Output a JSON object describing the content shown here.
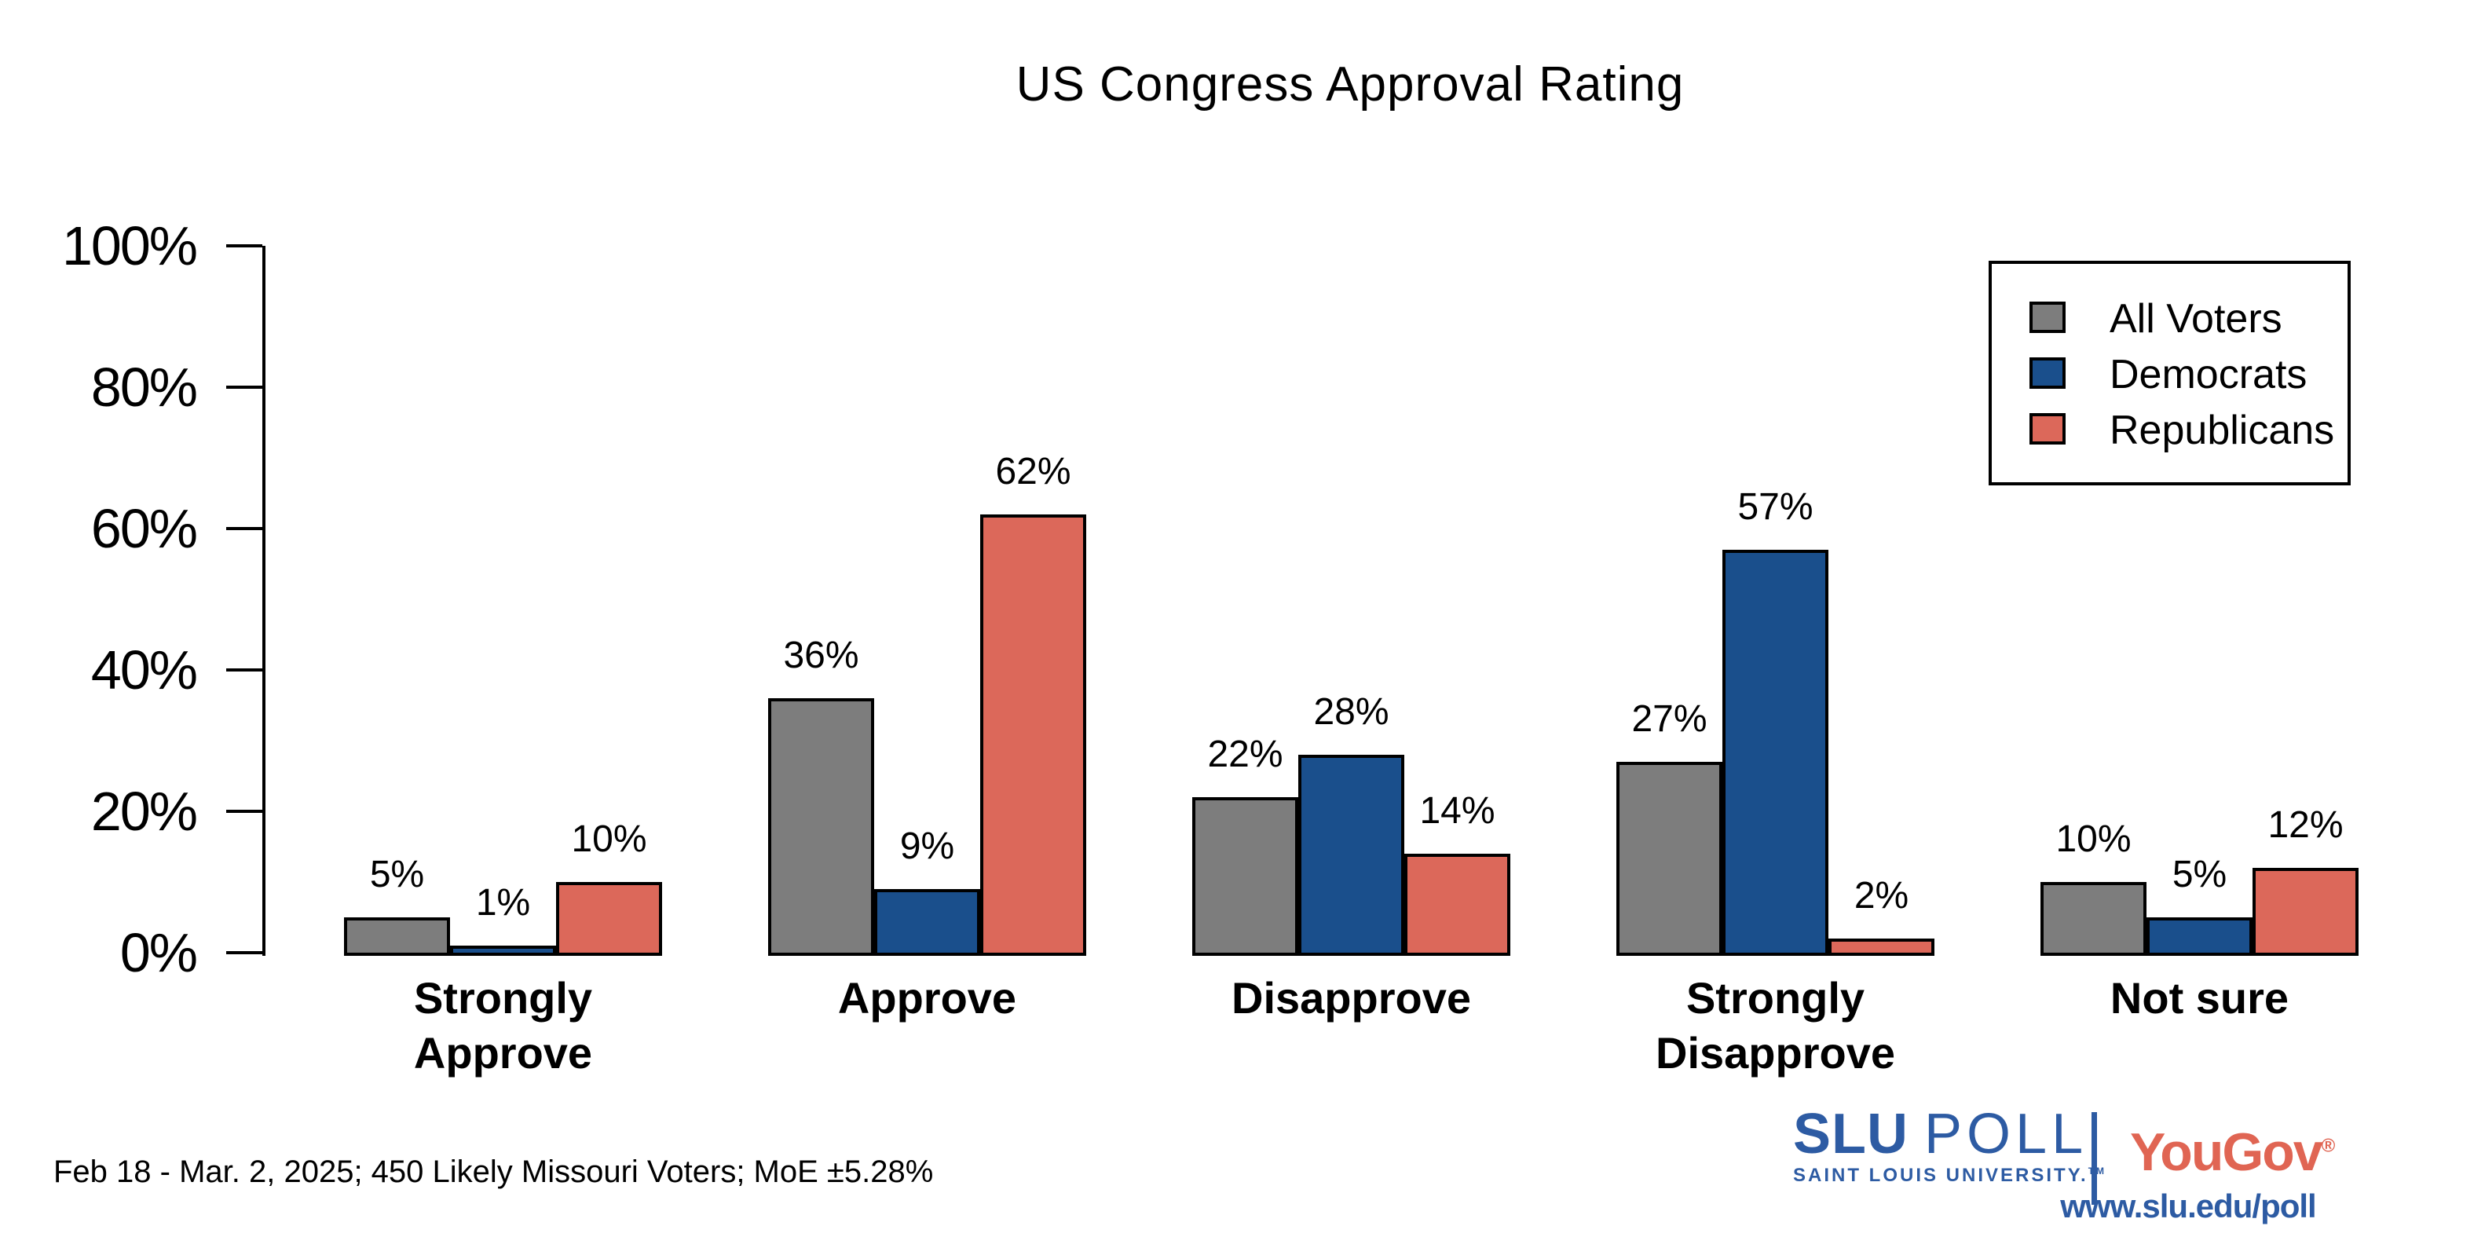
{
  "title": "US Congress Approval Rating",
  "legend": {
    "items": [
      {
        "label": "All Voters",
        "color": "#7d7d7d"
      },
      {
        "label": "Democrats",
        "color": "#1a4f8c"
      },
      {
        "label": "Republicans",
        "color": "#dc685a"
      }
    ]
  },
  "chart_data": {
    "type": "bar",
    "title": "US Congress Approval Rating",
    "categories": [
      "Strongly Approve",
      "Approve",
      "Disapprove",
      "Strongly Disapprove",
      "Not sure"
    ],
    "series": [
      {
        "name": "All Voters",
        "color": "#7d7d7d",
        "values": [
          5,
          36,
          22,
          27,
          10
        ]
      },
      {
        "name": "Democrats",
        "color": "#1a4f8c",
        "values": [
          1,
          9,
          28,
          57,
          5
        ]
      },
      {
        "name": "Republicans",
        "color": "#dc685a",
        "values": [
          10,
          62,
          14,
          2,
          12
        ]
      }
    ],
    "value_suffix": "%",
    "y_ticks": [
      "0%",
      "20%",
      "40%",
      "60%",
      "80%",
      "100%"
    ],
    "ylim": [
      0,
      100
    ],
    "grid": false,
    "legend_position": "top-right",
    "bar_outline_color": "#000000"
  },
  "footer": {
    "note": "Feb 18 - Mar. 2, 2025; 450 Likely Missouri Voters; MoE ±5.28%",
    "website": "www.slu.edu/poll"
  },
  "branding": {
    "slu": "SLU",
    "poll": "POLL",
    "slu_subtitle": "SAINT LOUIS UNIVERSITY.",
    "slu_trademark": "TM",
    "partner": "YouGov",
    "partner_registered": "®",
    "brand_blue": "#2d5ba3",
    "partner_color": "#e06553"
  }
}
